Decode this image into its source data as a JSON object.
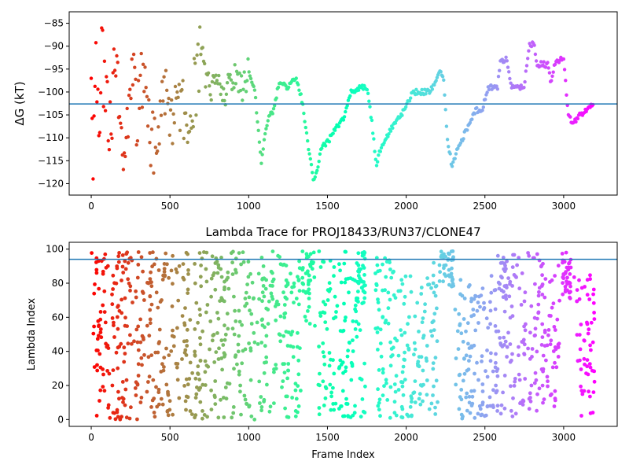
{
  "chart_data": [
    {
      "type": "scatter",
      "title": "",
      "xlabel": "",
      "ylabel": "ΔG (kT)",
      "xlim": [
        -140,
        3340
      ],
      "ylim": [
        -122.5,
        -82.5
      ],
      "xticks": [
        0,
        500,
        1000,
        1500,
        2000,
        2500,
        3000
      ],
      "yticks": [
        -120,
        -115,
        -110,
        -105,
        -100,
        -95,
        -90,
        -85
      ],
      "hline": -102.6,
      "hline_color": "#1f77b4",
      "colormap": "rainbow_r",
      "n_frames": 3200,
      "trace": [
        [
          0,
          -90
        ],
        [
          10,
          -120
        ],
        [
          20,
          -110
        ],
        [
          30,
          -90
        ],
        [
          40,
          -100
        ],
        [
          50,
          -106
        ],
        [
          60,
          -100
        ],
        [
          70,
          -86
        ],
        [
          80,
          -100
        ],
        [
          100,
          -100
        ],
        [
          120,
          -108
        ],
        [
          140,
          -100
        ],
        [
          160,
          -92
        ],
        [
          180,
          -105
        ],
        [
          200,
          -116
        ],
        [
          230,
          -108
        ],
        [
          260,
          -95
        ],
        [
          290,
          -106
        ],
        [
          320,
          -98
        ],
        [
          360,
          -104
        ],
        [
          400,
          -114
        ],
        [
          440,
          -104
        ],
        [
          480,
          -100
        ],
        [
          520,
          -106
        ],
        [
          560,
          -101
        ],
        [
          600,
          -105
        ],
        [
          640,
          -101
        ],
        [
          680,
          -96
        ],
        [
          700,
          -91
        ],
        [
          720,
          -96
        ],
        [
          760,
          -100
        ],
        [
          800,
          -95
        ],
        [
          840,
          -101
        ],
        [
          880,
          -98
        ],
        [
          920,
          -96
        ],
        [
          960,
          -100
        ],
        [
          1000,
          -95
        ],
        [
          1040,
          -100
        ],
        [
          1060,
          -108
        ],
        [
          1080,
          -115
        ],
        [
          1100,
          -110
        ],
        [
          1130,
          -105
        ],
        [
          1160,
          -104
        ],
        [
          1180,
          -100
        ],
        [
          1200,
          -98
        ],
        [
          1250,
          -99
        ],
        [
          1300,
          -97
        ],
        [
          1340,
          -102
        ],
        [
          1380,
          -112
        ],
        [
          1410,
          -119
        ],
        [
          1430,
          -118
        ],
        [
          1460,
          -112
        ],
        [
          1500,
          -111
        ],
        [
          1550,
          -108
        ],
        [
          1600,
          -106
        ],
        [
          1650,
          -100
        ],
        [
          1700,
          -99
        ],
        [
          1750,
          -99
        ],
        [
          1780,
          -106
        ],
        [
          1810,
          -116
        ],
        [
          1830,
          -113
        ],
        [
          1870,
          -110
        ],
        [
          1920,
          -107
        ],
        [
          1970,
          -105
        ],
        [
          2000,
          -103
        ],
        [
          2040,
          -100
        ],
        [
          2150,
          -100
        ],
        [
          2190,
          -98
        ],
        [
          2220,
          -95
        ],
        [
          2240,
          -98
        ],
        [
          2260,
          -110
        ],
        [
          2290,
          -116
        ],
        [
          2320,
          -113
        ],
        [
          2360,
          -110
        ],
        [
          2400,
          -107
        ],
        [
          2440,
          -104
        ],
        [
          2480,
          -104
        ],
        [
          2520,
          -99
        ],
        [
          2580,
          -99
        ],
        [
          2600,
          -93
        ],
        [
          2640,
          -93
        ],
        [
          2670,
          -99
        ],
        [
          2750,
          -99
        ],
        [
          2780,
          -90
        ],
        [
          2810,
          -89
        ],
        [
          2830,
          -94
        ],
        [
          2900,
          -94
        ],
        [
          2920,
          -98
        ],
        [
          2950,
          -93
        ],
        [
          3000,
          -93
        ],
        [
          3030,
          -105
        ],
        [
          3060,
          -107
        ],
        [
          3100,
          -105
        ],
        [
          3150,
          -104
        ],
        [
          3190,
          -102
        ]
      ]
    },
    {
      "type": "scatter",
      "title": "Lambda Trace for PROJ18433/RUN37/CLONE47",
      "xlabel": "Frame Index",
      "ylabel": "Lambda Index",
      "xlim": [
        -140,
        3340
      ],
      "ylim": [
        -4,
        104
      ],
      "xticks": [
        0,
        500,
        1000,
        1500,
        2000,
        2500,
        3000
      ],
      "yticks": [
        0,
        20,
        40,
        60,
        80,
        100
      ],
      "hline": 94,
      "hline_color": "#1f77b4",
      "colormap": "rainbow_r",
      "n_frames": 3200,
      "clusters": [
        [
          0,
          120,
          0,
          98
        ],
        [
          130,
          1330,
          0,
          99
        ],
        [
          1340,
          1430,
          55,
          99
        ],
        [
          1440,
          1740,
          0,
          99
        ],
        [
          1690,
          1740,
          75,
          99
        ],
        [
          1800,
          2060,
          0,
          95
        ],
        [
          2070,
          2200,
          0,
          92
        ],
        [
          2210,
          2300,
          78,
          99
        ],
        [
          2310,
          2520,
          0,
          82
        ],
        [
          2530,
          2760,
          0,
          98
        ],
        [
          2600,
          2640,
          70,
          99
        ],
        [
          2770,
          2980,
          0,
          99
        ],
        [
          2990,
          3070,
          70,
          99
        ],
        [
          3080,
          3200,
          0,
          85
        ]
      ]
    }
  ]
}
